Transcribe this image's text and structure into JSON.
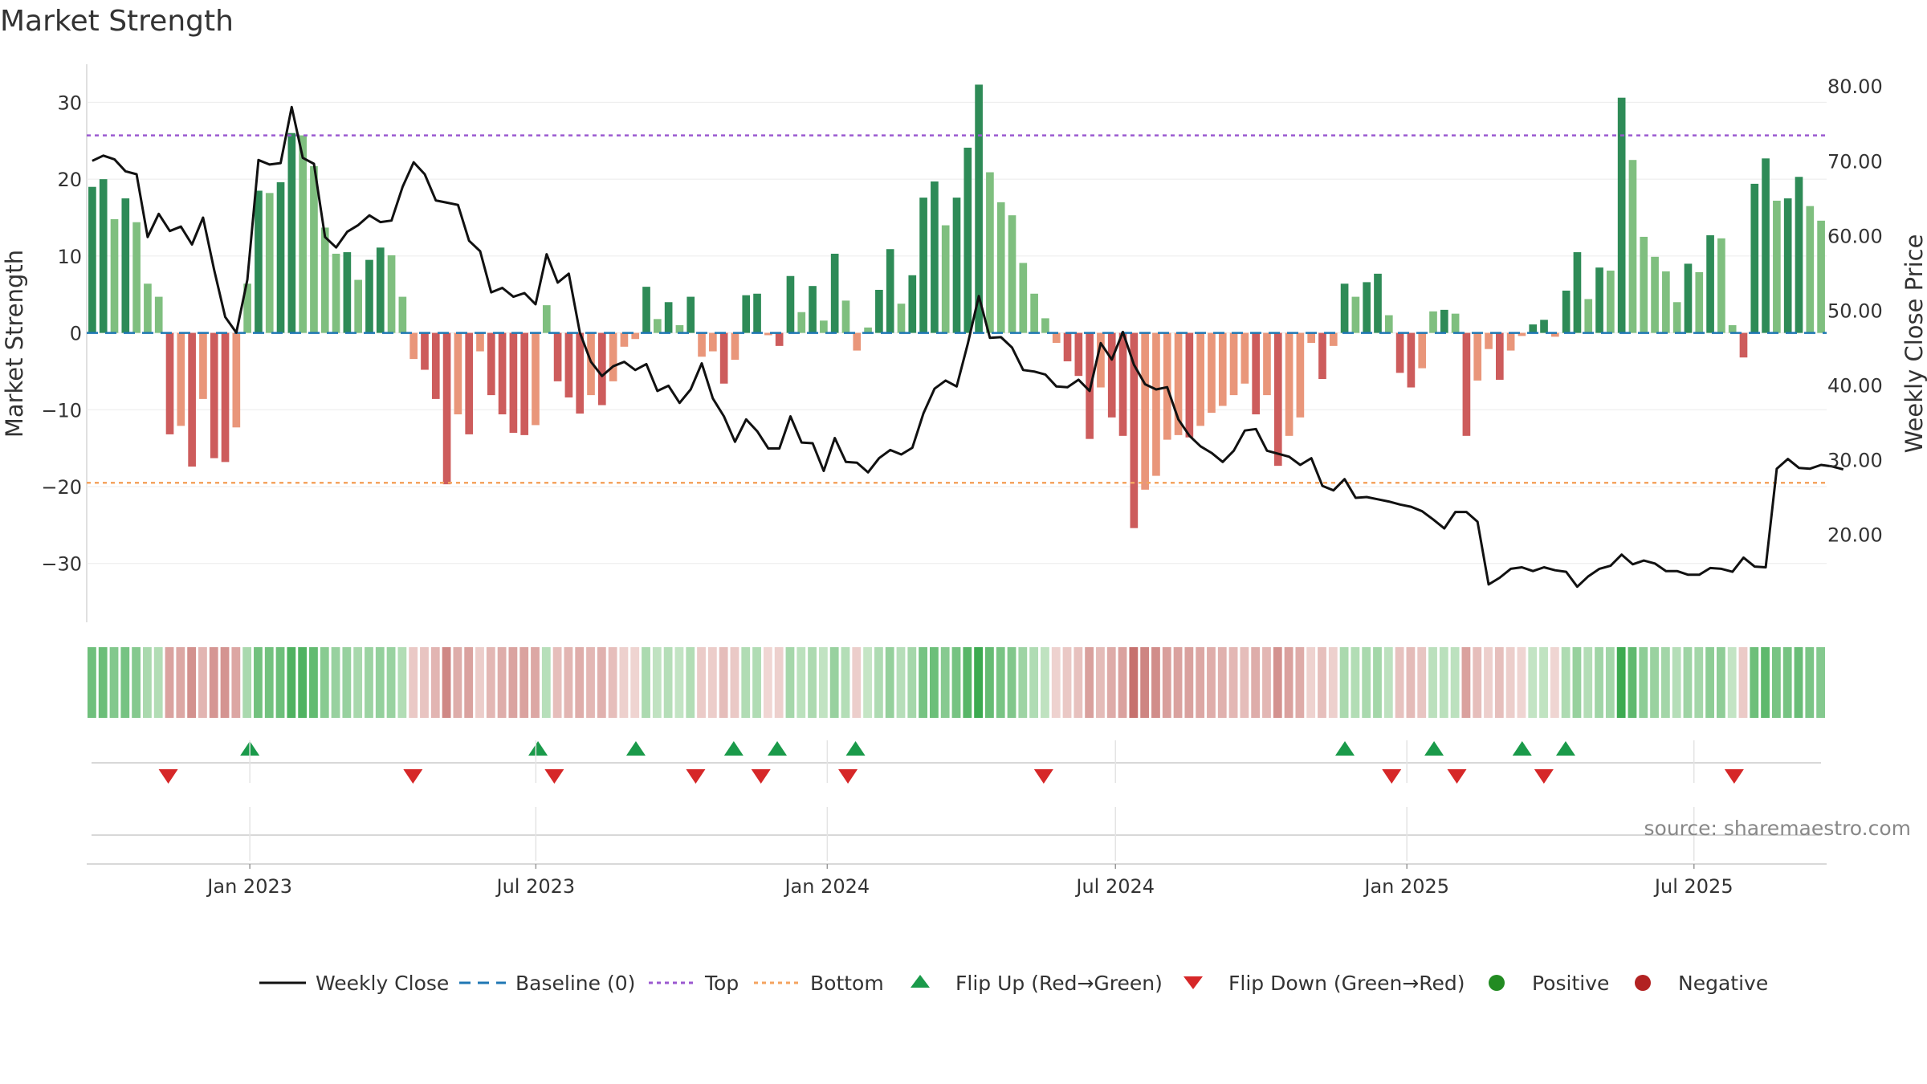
{
  "title": "Market Strength",
  "source": "source: sharemaestro.com",
  "chart_data": {
    "type": "bar",
    "y_left_label": "Market Strength",
    "y_right_label": "Weekly Close Price",
    "y_left_ticks": [
      "30",
      "20",
      "10",
      "0",
      "−10",
      "−20",
      "−30"
    ],
    "y_right_ticks": [
      "80.00",
      "70.00",
      "60.00",
      "50.00",
      "40.00",
      "30.00",
      "20.00"
    ],
    "x_ticks": [
      "Jan 2023",
      "Jul 2023",
      "Jan 2024",
      "Jul 2024",
      "Jan 2025",
      "Jul 2025"
    ],
    "ylim_left": [
      -34,
      36
    ],
    "ylim_right": [
      12,
      84
    ],
    "top_line": 25.7,
    "bottom_line": -19.5,
    "baseline": 0,
    "x_range": [
      0,
      160
    ],
    "x_tick_positions": [
      15.0,
      41.3,
      68.1,
      94.6,
      121.4,
      147.8
    ],
    "strength": [
      19,
      20,
      14.8,
      17.5,
      14.4,
      6.4,
      4.7,
      -13.2,
      -12.1,
      -17.4,
      -8.6,
      -16.3,
      -16.8,
      -12.3,
      6.4,
      18.5,
      18.2,
      19.6,
      26,
      25.7,
      21.7,
      13.7,
      10.3,
      10.5,
      6.9,
      9.5,
      11.1,
      10.1,
      4.7,
      -3.4,
      -4.8,
      -8.6,
      -19.7,
      -10.6,
      -13.2,
      -2.4,
      -8.1,
      -10.6,
      -13,
      -13.3,
      -12,
      3.6,
      -6.3,
      -8.4,
      -10.5,
      -8.1,
      -9.4,
      -6.3,
      -1.8,
      -0.8,
      6,
      1.8,
      4,
      1,
      4.7,
      -3.1,
      -2.4,
      -6.6,
      -3.5,
      4.9,
      5.1,
      -0.3,
      -1.7,
      7.4,
      2.7,
      6.1,
      1.6,
      10.3,
      4.2,
      -2.3,
      0.7,
      5.6,
      10.9,
      3.8,
      7.5,
      17.6,
      19.7,
      14,
      17.6,
      24.1,
      32.3,
      20.9,
      17,
      15.3,
      9.1,
      5.1,
      1.9,
      -1.3,
      -3.7,
      -5.6,
      -13.8,
      -7.1,
      -11,
      -13.4,
      -25.4,
      -20.4,
      -18.6,
      -13.9,
      -13.3,
      -13.6,
      -12.1,
      -10.4,
      -9.5,
      -8.1,
      -6.6,
      -10.6,
      -8.1,
      -17.3,
      -13.4,
      -11,
      -1.3,
      -6,
      -1.7,
      6.4,
      4.7,
      6.6,
      7.7,
      2.3,
      -5.2,
      -7.1,
      -4.6,
      2.8,
      3,
      2.5,
      -13.4,
      -6.2,
      -2.1,
      -6.1,
      -2.3,
      -0.4,
      1.1,
      1.7,
      -0.5,
      5.5,
      10.5,
      4.4,
      8.5,
      8.1,
      30.6,
      22.5,
      12.5,
      9.9,
      8,
      4,
      9,
      7.9,
      12.7,
      12.3,
      1,
      -3.2,
      19.4,
      22.7,
      17.2,
      17.5,
      20.3,
      16.5,
      14.6
    ],
    "price": [
      70,
      70.7,
      70.2,
      68.6,
      68.2,
      59.8,
      62.9,
      60.6,
      61.2,
      58.8,
      62.4,
      55.4,
      49.1,
      47,
      54.1,
      70.1,
      69.5,
      69.7,
      77.2,
      70.4,
      69.6,
      59.8,
      58.4,
      60.5,
      61.4,
      62.7,
      61.8,
      62,
      66.5,
      69.8,
      68.2,
      64.7,
      64.4,
      64.1,
      59.3,
      57.9,
      52.4,
      53,
      51.8,
      52.3,
      50.8,
      57.5,
      53.7,
      54.9,
      47,
      43.1,
      41.2,
      42.5,
      43.1,
      42,
      42.8,
      39.2,
      39.9,
      37.6,
      39.4,
      42.9,
      38.2,
      35.8,
      32.4,
      35.4,
      33.8,
      31.5,
      31.5,
      35.8,
      32.3,
      32.2,
      28.5,
      32.9,
      29.7,
      29.6,
      28.3,
      30.2,
      31.3,
      30.7,
      31.6,
      36.2,
      39.5,
      40.6,
      39.8,
      45.5,
      51.9,
      46.3,
      46.4,
      45,
      42,
      41.8,
      41.4,
      39.8,
      39.7,
      40.7,
      39.2,
      45.6,
      43.4,
      47.1,
      42.7,
      40.1,
      39.4,
      39.7,
      35.4,
      33.2,
      31.8,
      30.9,
      29.7,
      31.2,
      33.9,
      34.1,
      31.2,
      30.8,
      30.4,
      29.3,
      30.2,
      26.5,
      25.9,
      27.4,
      24.9,
      25,
      24.7,
      24.4,
      24,
      23.7,
      23.1,
      22,
      20.8,
      23,
      23,
      21.7,
      13.3,
      14.2,
      15.4,
      15.6,
      15.1,
      15.6,
      15.2,
      15,
      13,
      14.4,
      15.4,
      15.8,
      17.3,
      16,
      16.5,
      16.1,
      15.1,
      15.1,
      14.6,
      14.6,
      15.5,
      15.4,
      15,
      16.9,
      15.7,
      15.6,
      28.8,
      30.1,
      28.9,
      28.8,
      29.3,
      29.1,
      28.7
    ],
    "flip_up_x": [
      15,
      41.5,
      50.5,
      59.5,
      63.5,
      70.7,
      115.7,
      123.9,
      132,
      136
    ],
    "flip_down_x": [
      7.5,
      30,
      43,
      56,
      62,
      70,
      88,
      120,
      126,
      134,
      151.5
    ],
    "legend": [
      "Weekly Close",
      "Baseline (0)",
      "Top",
      "Bottom",
      "Flip Up (Red→Green)",
      "Flip Down (Green→Red)",
      "Positive",
      "Negative"
    ],
    "colors": {
      "close": "#111111",
      "baseline": "#1f77b4",
      "top": "#9b59d0",
      "bottom": "#f4a460",
      "pos_strong": "#2e8b57",
      "pos_light": "#7fbf7f",
      "neg_strong": "#cd5c5c",
      "neg_light": "#e9967a",
      "flip_up": "#1a9a4a",
      "flip_down": "#d62728",
      "positive_dot": "#228b22",
      "negative_dot": "#b22222"
    }
  }
}
